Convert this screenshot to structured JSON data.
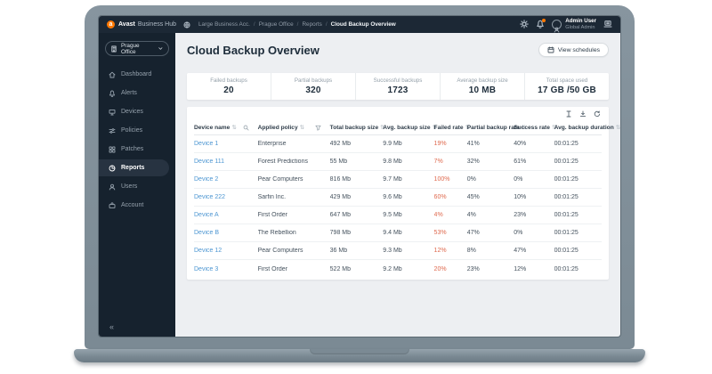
{
  "colors": {
    "accent_orange": "#ff7800",
    "link_blue": "#4d96d2",
    "failed_red": "#df6a4f",
    "dark_navy": "#16222e",
    "content_bg": "#edeff2"
  },
  "topbar": {
    "brand_bold": "Avast",
    "brand_rest": "Business Hub",
    "breadcrumb": [
      "Large Business Acc.",
      "Prague Office",
      "Reports",
      "Cloud Backup Overview"
    ],
    "user": {
      "name": "Admin User",
      "role": "Global Admin"
    },
    "icons": [
      "globe-icon",
      "gear-icon",
      "bell-icon",
      "avatar-icon",
      "console-icon"
    ]
  },
  "sidebar": {
    "org_selector": {
      "label": "Prague Office",
      "icon": "building-icon",
      "chevron": "chevron-down-icon"
    },
    "items": [
      {
        "label": "Dashboard",
        "icon": "home-icon",
        "selected": false
      },
      {
        "label": "Alerts",
        "icon": "bell-icon",
        "selected": false
      },
      {
        "label": "Devices",
        "icon": "monitor-icon",
        "selected": false
      },
      {
        "label": "Policies",
        "icon": "sliders-icon",
        "selected": false
      },
      {
        "label": "Patches",
        "icon": "grid-icon",
        "selected": false
      },
      {
        "label": "Reports",
        "icon": "pie-chart-icon",
        "selected": true
      },
      {
        "label": "Users",
        "icon": "user-icon",
        "selected": false
      },
      {
        "label": "Account",
        "icon": "briefcase-icon",
        "selected": false
      }
    ],
    "collapse_glyph": "«"
  },
  "header": {
    "title": "Cloud Backup Overview",
    "view_schedules_label": "View schedules"
  },
  "stats": [
    {
      "label": "Failed backups",
      "value": "20"
    },
    {
      "label": "Partial backups",
      "value": "320"
    },
    {
      "label": "Successful backups",
      "value": "1723"
    },
    {
      "label": "Average backup size",
      "value": "10 MB"
    },
    {
      "label": "Total space used",
      "value": "17 GB /50 GB"
    }
  ],
  "table": {
    "toolbar_icons": [
      "columns-icon",
      "download-icon",
      "refresh-icon"
    ],
    "sort_glyph": "⇅",
    "columns": [
      "Device name",
      "Applied policy",
      "Total backup size",
      "Avg. backup size",
      "Failed rate",
      "Partial backup rate",
      "Success rate",
      "Avg. backup duration"
    ],
    "rows": [
      {
        "device": "Device 1",
        "policy": "Enterprise",
        "total": "492 Mb",
        "avg": "9.9 Mb",
        "failed": "19%",
        "partial": "41%",
        "success": "40%",
        "duration": "00:01:25"
      },
      {
        "device": "Device 111",
        "policy": "Forest Predictions",
        "total": "55 Mb",
        "avg": "9.8 Mb",
        "failed": "7%",
        "partial": "32%",
        "success": "61%",
        "duration": "00:01:25"
      },
      {
        "device": "Device 2",
        "policy": "Pear Computers",
        "total": "816 Mb",
        "avg": "9.7 Mb",
        "failed": "100%",
        "partial": "0%",
        "success": "0%",
        "duration": "00:01:25"
      },
      {
        "device": "Device 222",
        "policy": "Sarfin Inc.",
        "total": "429 Mb",
        "avg": "9.6 Mb",
        "failed": "60%",
        "partial": "45%",
        "success": "10%",
        "duration": "00:01:25"
      },
      {
        "device": "Device A",
        "policy": "First Order",
        "total": "647 Mb",
        "avg": "9.5 Mb",
        "failed": "4%",
        "partial": "4%",
        "success": "23%",
        "duration": "00:01:25"
      },
      {
        "device": "Device B",
        "policy": "The Rebellion",
        "total": "798 Mb",
        "avg": "9.4 Mb",
        "failed": "53%",
        "partial": "47%",
        "success": "0%",
        "duration": "00:01:25"
      },
      {
        "device": "Device 12",
        "policy": "Pear Computers",
        "total": "36 Mb",
        "avg": "9.3 Mb",
        "failed": "12%",
        "partial": "8%",
        "success": "47%",
        "duration": "00:01:25"
      },
      {
        "device": "Device 3",
        "policy": "First Order",
        "total": "522 Mb",
        "avg": "9.2 Mb",
        "failed": "20%",
        "partial": "23%",
        "success": "12%",
        "duration": "00:01:25"
      }
    ]
  }
}
